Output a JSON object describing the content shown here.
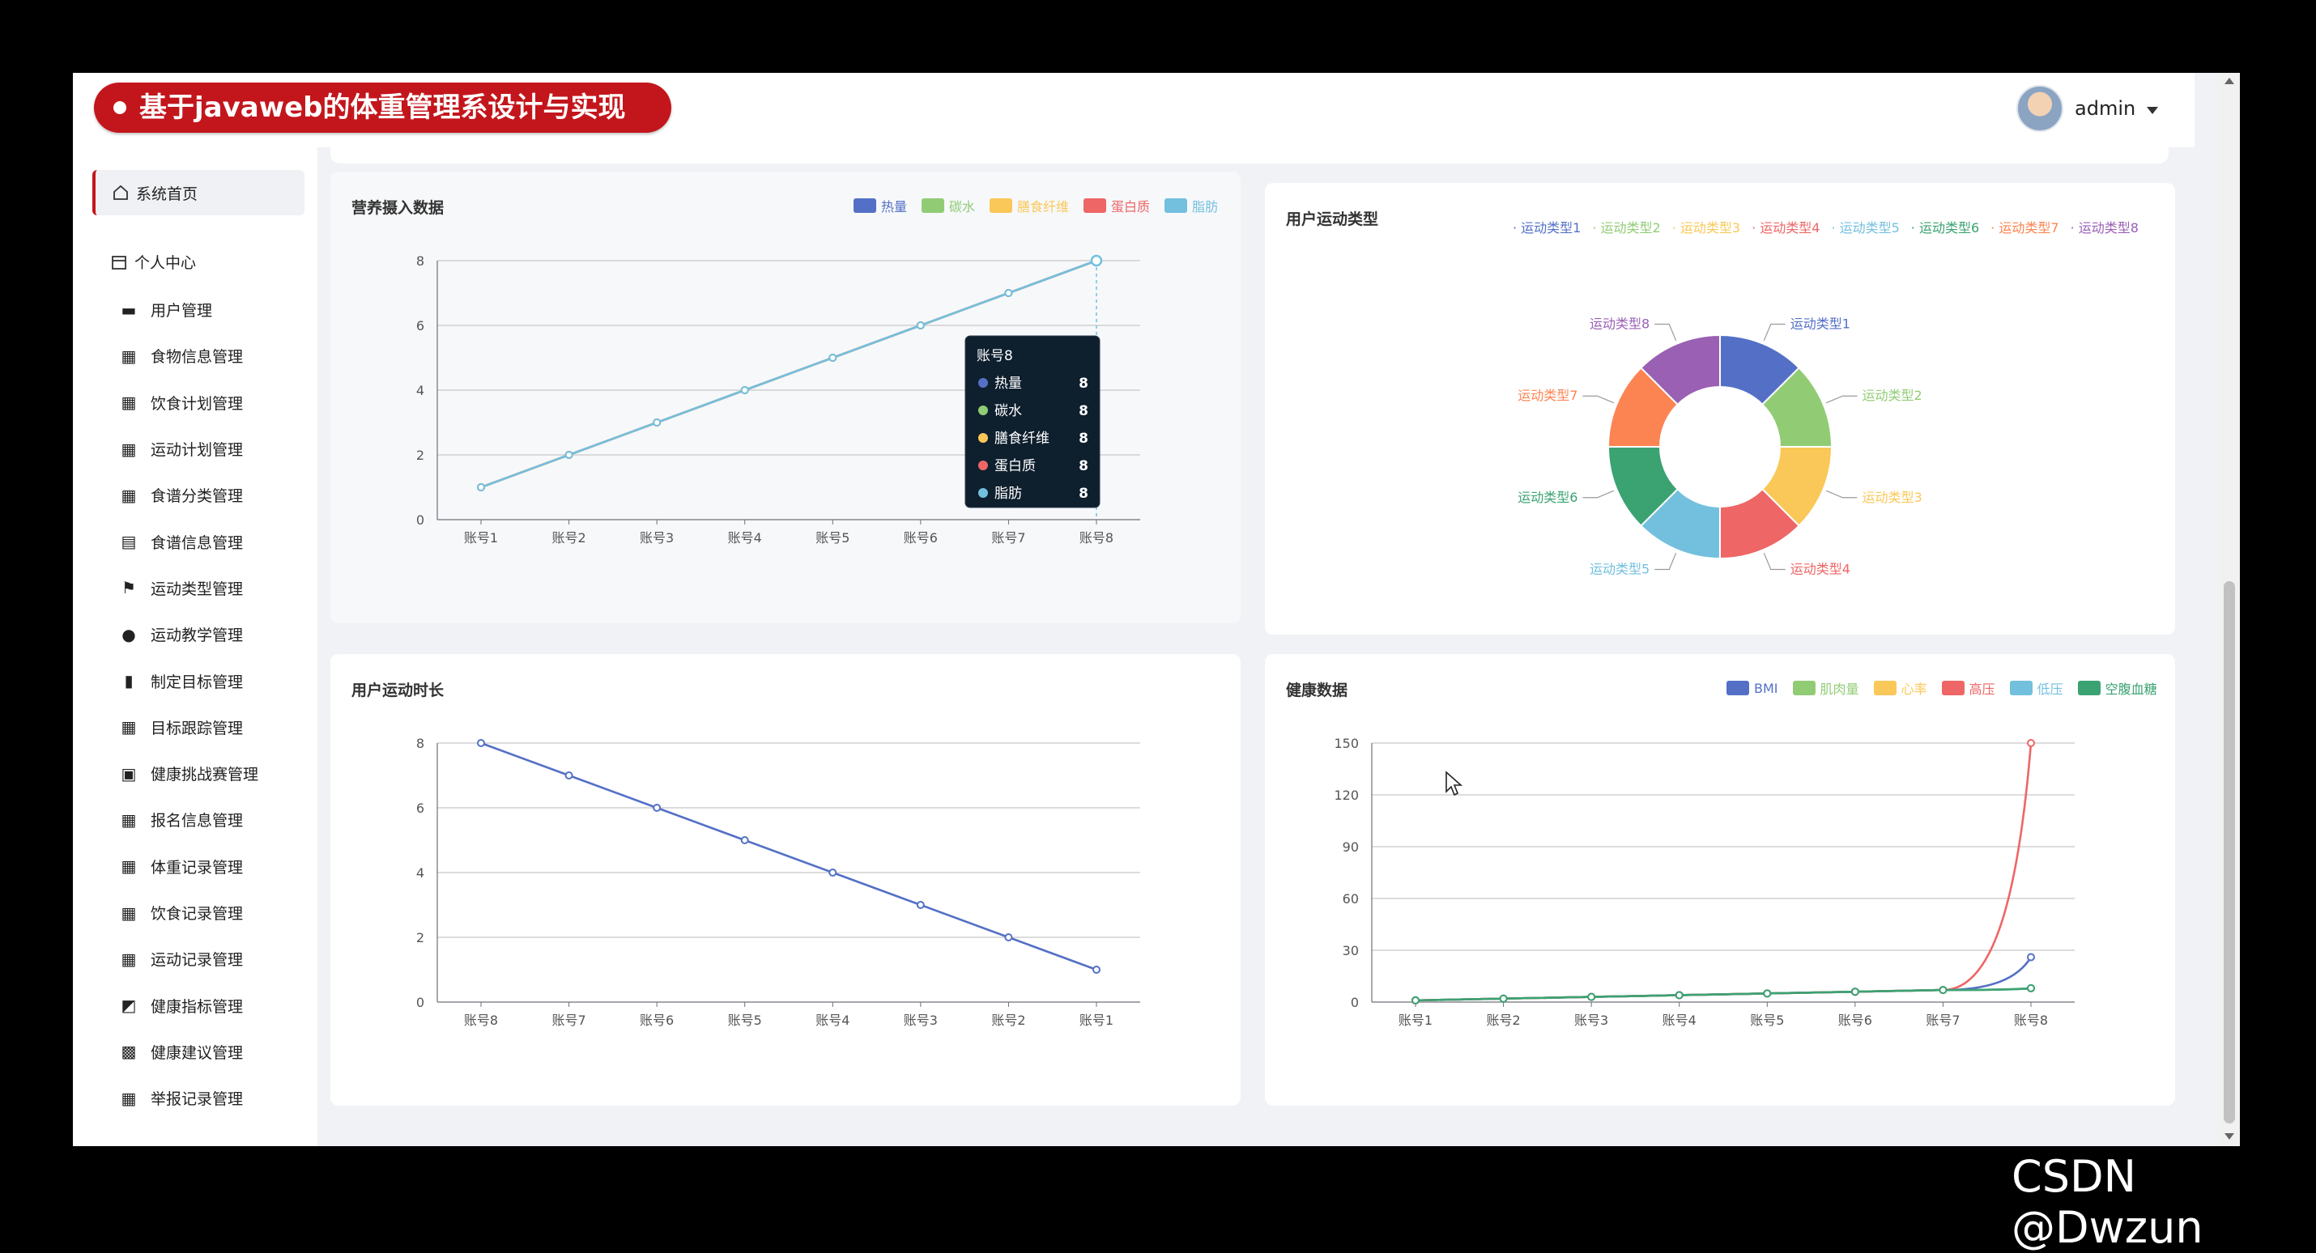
{
  "header": {
    "title": "基于javaweb的体重管理系设计与实现",
    "user_name": "admin"
  },
  "sidebar": {
    "home_label": "系统首页",
    "group_label": "个人中心",
    "items": [
      {
        "label": "用户管理",
        "icon": "briefcase-icon"
      },
      {
        "label": "食物信息管理",
        "icon": "grid-icon"
      },
      {
        "label": "饮食计划管理",
        "icon": "grid-icon"
      },
      {
        "label": "运动计划管理",
        "icon": "grid-icon"
      },
      {
        "label": "食谱分类管理",
        "icon": "grid-icon"
      },
      {
        "label": "食谱信息管理",
        "icon": "clipboard-icon"
      },
      {
        "label": "运动类型管理",
        "icon": "flag-icon"
      },
      {
        "label": "运动教学管理",
        "icon": "user-icon"
      },
      {
        "label": "制定目标管理",
        "icon": "bar-chart-icon"
      },
      {
        "label": "目标跟踪管理",
        "icon": "grid-icon"
      },
      {
        "label": "健康挑战赛管理",
        "icon": "calendar-x-icon"
      },
      {
        "label": "报名信息管理",
        "icon": "grid-icon"
      },
      {
        "label": "体重记录管理",
        "icon": "grid-icon"
      },
      {
        "label": "饮食记录管理",
        "icon": "grid-icon"
      },
      {
        "label": "运动记录管理",
        "icon": "grid-icon"
      },
      {
        "label": "健康指标管理",
        "icon": "chart-box-icon"
      },
      {
        "label": "健康建议管理",
        "icon": "grid-9-icon"
      },
      {
        "label": "举报记录管理",
        "icon": "grid-icon"
      }
    ]
  },
  "watermark": "CSDN @Dwzun",
  "chart_data": [
    {
      "type": "line",
      "title": "营养摄入数据",
      "categories": [
        "账号1",
        "账号2",
        "账号3",
        "账号4",
        "账号5",
        "账号6",
        "账号7",
        "账号8"
      ],
      "ylim": [
        0,
        8
      ],
      "yticks": [
        "0",
        "2",
        "4",
        "6",
        "8"
      ],
      "series": [
        {
          "name": "热量",
          "color": "#5470c6",
          "values": [
            1,
            2,
            3,
            4,
            5,
            6,
            7,
            8
          ]
        },
        {
          "name": "碳水",
          "color": "#91cc75",
          "values": [
            1,
            2,
            3,
            4,
            5,
            6,
            7,
            8
          ]
        },
        {
          "name": "膳食纤维",
          "color": "#fac858",
          "values": [
            1,
            2,
            3,
            4,
            5,
            6,
            7,
            8
          ]
        },
        {
          "name": "蛋白质",
          "color": "#ee6666",
          "values": [
            1,
            2,
            3,
            4,
            5,
            6,
            7,
            8
          ]
        },
        {
          "name": "脂肪",
          "color": "#73c0de",
          "values": [
            1,
            2,
            3,
            4,
            5,
            6,
            7,
            8
          ]
        }
      ],
      "tooltip": {
        "title": "账号8",
        "rows": [
          {
            "name": "热量",
            "value": "8"
          },
          {
            "name": "碳水",
            "value": "8"
          },
          {
            "name": "膳食纤维",
            "value": "8"
          },
          {
            "name": "蛋白质",
            "value": "8"
          },
          {
            "name": "脂肪",
            "value": "8"
          }
        ]
      }
    },
    {
      "type": "pie",
      "title": "用户运动类型",
      "categories": [
        "运动类型1",
        "运动类型2",
        "运动类型3",
        "运动类型4",
        "运动类型5",
        "运动类型6",
        "运动类型7",
        "运动类型8"
      ],
      "values": [
        1,
        1,
        1,
        1,
        1,
        1,
        1,
        1
      ],
      "colors": [
        "#5470c6",
        "#91cc75",
        "#fac858",
        "#ee6666",
        "#73c0de",
        "#3ba272",
        "#fc8452",
        "#9a60b4"
      ],
      "legend": "top-right"
    },
    {
      "type": "line",
      "title": "用户运动时长",
      "categories": [
        "账号8",
        "账号7",
        "账号6",
        "账号5",
        "账号4",
        "账号3",
        "账号2",
        "账号1"
      ],
      "ylim": [
        0,
        8
      ],
      "yticks": [
        "0",
        "2",
        "4",
        "6",
        "8"
      ],
      "series": [
        {
          "color": "#5470c6",
          "values": [
            8,
            7,
            6,
            5,
            4,
            3,
            2,
            1
          ]
        }
      ]
    },
    {
      "type": "line",
      "title": "健康数据",
      "categories": [
        "账号1",
        "账号2",
        "账号3",
        "账号4",
        "账号5",
        "账号6",
        "账号7",
        "账号8"
      ],
      "ylim": [
        0,
        150
      ],
      "yticks": [
        "0",
        "30",
        "60",
        "90",
        "120",
        "150"
      ],
      "series": [
        {
          "name": "BMI",
          "color": "#5470c6",
          "values": [
            1,
            2,
            3,
            4,
            5,
            6,
            7,
            26
          ]
        },
        {
          "name": "肌肉量",
          "color": "#91cc75",
          "values": [
            1,
            2,
            3,
            4,
            5,
            6,
            7,
            8
          ]
        },
        {
          "name": "心率",
          "color": "#fac858",
          "values": [
            1,
            2,
            3,
            4,
            5,
            6,
            7,
            8
          ]
        },
        {
          "name": "高压",
          "color": "#ee6666",
          "values": [
            1,
            2,
            3,
            4,
            5,
            6,
            7,
            150
          ]
        },
        {
          "name": "低压",
          "color": "#73c0de",
          "values": [
            1,
            2,
            3,
            4,
            5,
            6,
            7,
            8
          ]
        },
        {
          "name": "空腹血糖",
          "color": "#3ba272",
          "values": [
            1,
            2,
            3,
            4,
            5,
            6,
            7,
            8
          ]
        }
      ]
    }
  ]
}
